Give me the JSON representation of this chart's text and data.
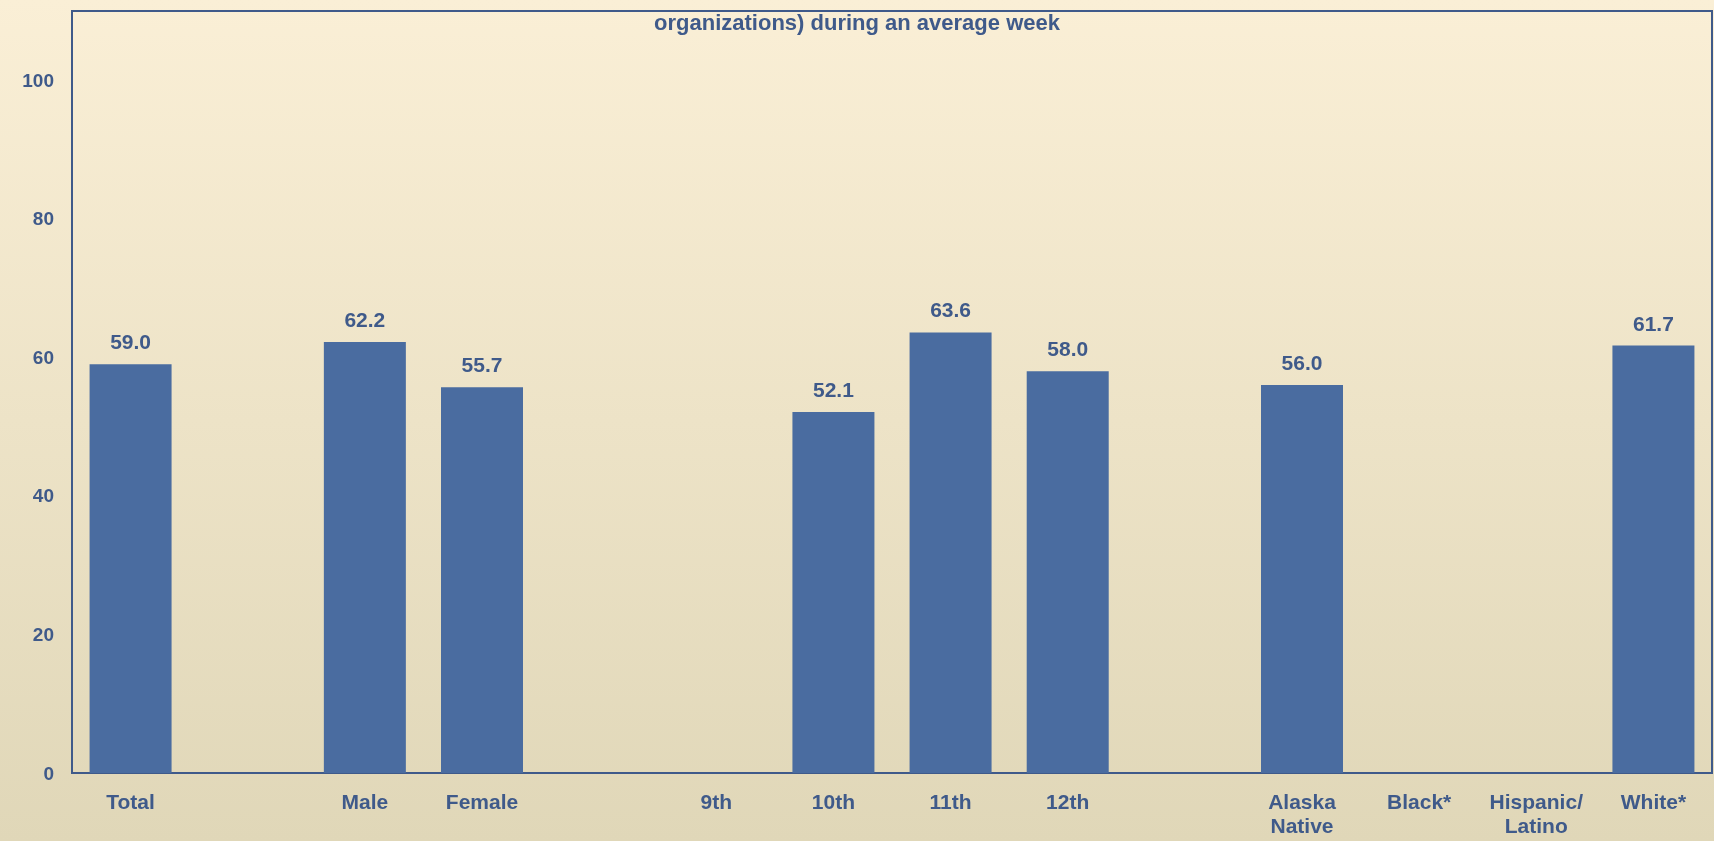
{
  "chart_data": {
    "type": "bar",
    "title": "organizations) during an average week",
    "categories": [
      "Total",
      null,
      "Male",
      "Female",
      null,
      "9th",
      "10th",
      "11th",
      "12th",
      null,
      "Alaska\nNative",
      "Black*",
      "Hispanic/\nLatino",
      "White*"
    ],
    "values": [
      59.0,
      null,
      62.2,
      55.7,
      null,
      null,
      52.1,
      63.6,
      58.0,
      null,
      56.0,
      null,
      null,
      61.7
    ],
    "value_labels": [
      "59.0",
      null,
      "62.2",
      "55.7",
      null,
      null,
      "52.1",
      "63.6",
      "58.0",
      null,
      "56.0",
      null,
      null,
      "61.7"
    ],
    "color": "#4a6ca0",
    "ylim": [
      0,
      110
    ],
    "yticks": [
      0,
      20,
      40,
      60,
      80,
      100
    ],
    "grid": false
  }
}
